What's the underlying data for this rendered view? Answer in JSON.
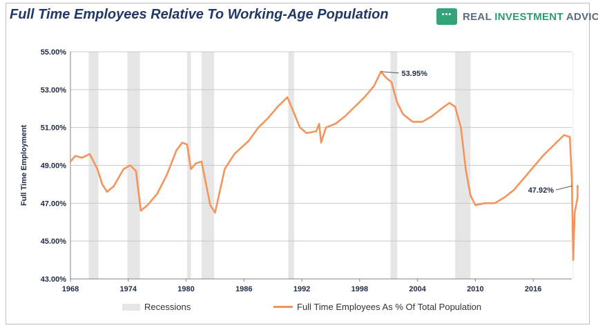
{
  "header": {
    "title": "Full Time Employees Relative To Working-Age Population",
    "brand_part1": "REAL ",
    "brand_part2": "INVESTMENT",
    "brand_part3": " ADVICE"
  },
  "colors": {
    "line": "#f4935a",
    "recession": "#e6e6e6",
    "grid": "#c8c8c8",
    "title": "#1f3864",
    "brand_green": "#2e9a70"
  },
  "chart_data": {
    "type": "line",
    "title": "Full Time Employees Relative To Working-Age Population",
    "ylabel": "Full Time Employment",
    "xlabel": "",
    "xlim": [
      1968.0,
      2020.0
    ],
    "ylim": [
      43.0,
      55.0
    ],
    "x_ticks": [
      "1968",
      "1974",
      "1980",
      "1986",
      "1992",
      "1998",
      "2004",
      "2010",
      "2016"
    ],
    "y_ticks": [
      "43.00%",
      "45.00%",
      "47.00%",
      "49.00%",
      "51.00%",
      "53.00%",
      "55.00%"
    ],
    "grid": true,
    "legend_position": "bottom",
    "recessions": [
      [
        1969.9,
        1970.9
      ],
      [
        1973.9,
        1975.2
      ],
      [
        1980.1,
        1980.5
      ],
      [
        1981.6,
        1982.9
      ],
      [
        1990.6,
        1991.2
      ],
      [
        2001.2,
        2001.9
      ],
      [
        2007.9,
        2009.5
      ],
      [
        2020.1,
        2020.4
      ]
    ],
    "series": [
      {
        "name": "Full Time Employees As % Of Total Population",
        "x": [
          1968.0,
          1968.5,
          1969.2,
          1970.0,
          1970.8,
          1971.3,
          1971.8,
          1972.5,
          1973.5,
          1974.2,
          1974.8,
          1975.3,
          1976.0,
          1977.0,
          1978.0,
          1979.0,
          1979.6,
          1980.1,
          1980.5,
          1981.0,
          1981.6,
          1982.5,
          1983.0,
          1984.0,
          1985.0,
          1986.5,
          1987.5,
          1988.5,
          1989.5,
          1990.5,
          1991.0,
          1991.8,
          1992.5,
          1993.5,
          1993.8,
          1994.0,
          1994.5,
          1995.5,
          1996.5,
          1997.5,
          1998.5,
          1999.5,
          2000.2,
          2000.8,
          2001.3,
          2001.9,
          2002.5,
          2003.5,
          2004.5,
          2005.5,
          2006.5,
          2007.3,
          2007.9,
          2008.5,
          2009.0,
          2009.5,
          2010.0,
          2011.0,
          2012.0,
          2013.0,
          2014.0,
          2015.0,
          2016.0,
          2017.0,
          2018.0,
          2019.2,
          2019.8,
          2020.0,
          2020.15,
          2020.3,
          2020.6,
          2021.0
        ],
        "values": [
          49.2,
          49.5,
          49.4,
          49.6,
          48.8,
          48.0,
          47.6,
          47.9,
          48.8,
          49.0,
          48.7,
          46.6,
          46.9,
          47.5,
          48.5,
          49.8,
          50.2,
          50.1,
          48.8,
          49.1,
          49.2,
          46.9,
          46.5,
          48.8,
          49.6,
          50.3,
          51.0,
          51.5,
          52.1,
          52.6,
          52.0,
          51.0,
          50.7,
          50.8,
          51.2,
          50.2,
          51.0,
          51.2,
          51.6,
          52.1,
          52.6,
          53.2,
          53.95,
          53.6,
          53.4,
          52.3,
          51.7,
          51.3,
          51.3,
          51.6,
          52.0,
          52.3,
          52.1,
          51.0,
          48.8,
          47.4,
          46.9,
          47.0,
          47.0,
          47.3,
          47.7,
          48.3,
          48.9,
          49.5,
          50.0,
          50.6,
          50.5,
          48.4,
          44.0,
          46.5,
          47.3,
          47.92
        ]
      }
    ],
    "annotations": [
      {
        "text": "53.95%",
        "x": 2000.2,
        "y": 53.95
      },
      {
        "text": "47.92%",
        "x": 2021.0,
        "y": 47.92
      }
    ],
    "legend": {
      "recessions_label": "Recessions",
      "series_label": "Full Time Employees As % Of Total Population"
    }
  }
}
